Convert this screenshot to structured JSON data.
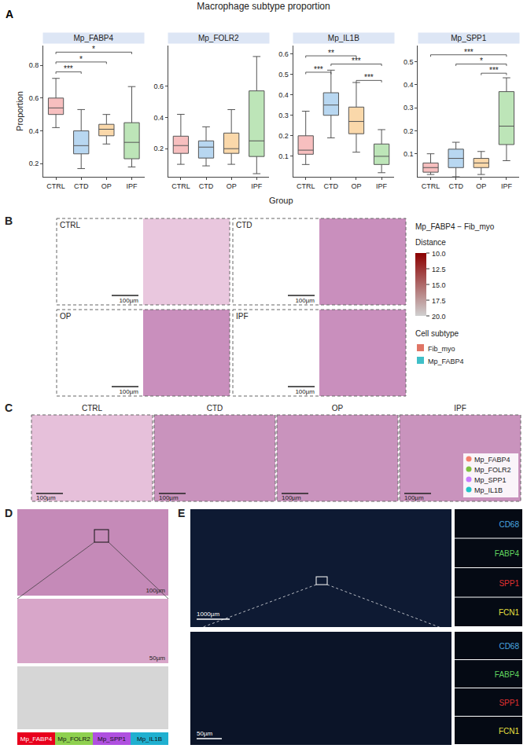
{
  "chart_data": {
    "type": "box",
    "label": "A",
    "title": "Macrophage subtype proportion",
    "x_label": "Group",
    "y_label": "Proportion",
    "categories": [
      "CTRL",
      "CTD",
      "OP",
      "IPF"
    ],
    "colors": [
      "#f08a8a",
      "#7db6e6",
      "#f5b865",
      "#86cf7d"
    ],
    "panels": [
      {
        "title": "Mp_FABP4",
        "ylim": [
          0.12,
          0.92
        ],
        "yticks": [
          0.2,
          0.4,
          0.6,
          0.8
        ],
        "lower": [
          0.42,
          0.17,
          0.32,
          0.18
        ],
        "q1": [
          0.5,
          0.26,
          0.37,
          0.23
        ],
        "median": [
          0.54,
          0.31,
          0.41,
          0.33
        ],
        "q3": [
          0.6,
          0.4,
          0.44,
          0.45
        ],
        "upper": [
          0.72,
          0.53,
          0.5,
          0.67
        ],
        "significance": [
          {
            "from": "CTRL",
            "to": "CTD",
            "label": "***",
            "y": 0.76
          },
          {
            "from": "CTRL",
            "to": "OP",
            "label": "*",
            "y": 0.82
          },
          {
            "from": "CTRL",
            "to": "IPF",
            "label": "*",
            "y": 0.88
          }
        ]
      },
      {
        "title": "Mp_FOLR2",
        "ylim": [
          0.02,
          0.86
        ],
        "yticks": [
          0.2,
          0.4,
          0.6
        ],
        "lower": [
          0.1,
          0.09,
          0.1,
          0.04
        ],
        "q1": [
          0.17,
          0.14,
          0.17,
          0.15
        ],
        "median": [
          0.22,
          0.21,
          0.2,
          0.25
        ],
        "q3": [
          0.28,
          0.25,
          0.3,
          0.57
        ],
        "upper": [
          0.42,
          0.34,
          0.45,
          0.79
        ],
        "significance": []
      },
      {
        "title": "Mp_IL1B",
        "ylim": [
          0.0,
          0.64
        ],
        "yticks": [
          0.1,
          0.2,
          0.3,
          0.4,
          0.5,
          0.6
        ],
        "lower": [
          0.06,
          0.19,
          0.12,
          0.02
        ],
        "q1": [
          0.11,
          0.3,
          0.21,
          0.06
        ],
        "median": [
          0.13,
          0.35,
          0.27,
          0.1
        ],
        "q3": [
          0.2,
          0.41,
          0.34,
          0.16
        ],
        "upper": [
          0.32,
          0.52,
          0.46,
          0.23
        ],
        "significance": [
          {
            "from": "OP",
            "to": "IPF",
            "label": "***",
            "y": 0.47
          },
          {
            "from": "CTRL",
            "to": "CTD",
            "label": "***",
            "y": 0.51
          },
          {
            "from": "CTD",
            "to": "IPF",
            "label": "***",
            "y": 0.55
          },
          {
            "from": "CTRL",
            "to": "OP",
            "label": "**",
            "y": 0.59
          }
        ]
      },
      {
        "title": "Mp_SPP1",
        "ylim": [
          0.0,
          0.57
        ],
        "yticks": [
          0.1,
          0.2,
          0.3,
          0.4,
          0.5
        ],
        "lower": [
          0.01,
          0.0,
          0.01,
          0.07
        ],
        "q1": [
          0.02,
          0.04,
          0.04,
          0.14
        ],
        "median": [
          0.04,
          0.08,
          0.06,
          0.22
        ],
        "q3": [
          0.06,
          0.12,
          0.08,
          0.37
        ],
        "upper": [
          0.1,
          0.15,
          0.11,
          0.43
        ],
        "significance": [
          {
            "from": "OP",
            "to": "IPF",
            "label": "***",
            "y": 0.45
          },
          {
            "from": "CTD",
            "to": "IPF",
            "label": "*",
            "y": 0.49
          },
          {
            "from": "CTRL",
            "to": "IPF",
            "label": "***",
            "y": 0.53
          }
        ]
      }
    ]
  },
  "panel_b": {
    "label": "B",
    "maps": [
      "CTRL",
      "CTD",
      "OP",
      "IPF"
    ],
    "scale_bar": "100µm",
    "colorbar": {
      "title": "Mp_FABP4 − Fib_myo",
      "subtitle": "Distance",
      "range": [
        10,
        20
      ],
      "colors": [
        "#8b0000",
        "#d0d0d0"
      ],
      "ticks": [
        {
          "value": 10,
          "label": "10.0"
        },
        {
          "value": 12.5,
          "label": "12.5"
        },
        {
          "value": 15,
          "label": "15.0"
        },
        {
          "value": 17.5,
          "label": "17.5"
        },
        {
          "value": 20,
          "label": "20.0"
        }
      ]
    },
    "legend": {
      "title": "Cell subtype",
      "items": [
        {
          "name": "Fib_myo",
          "color": "#e07565"
        },
        {
          "name": "Mp_FABP4",
          "color": "#3fbfc8"
        }
      ]
    }
  },
  "panel_c": {
    "label": "C",
    "maps": [
      "CTRL",
      "CTD",
      "OP",
      "IPF"
    ],
    "scale_bar": "100µm",
    "legend": [
      {
        "name": "Mp_FABP4",
        "color": "#f4806c"
      },
      {
        "name": "Mp_FOLR2",
        "color": "#7fbf3f"
      },
      {
        "name": "Mp_SPP1",
        "color": "#c77cff"
      },
      {
        "name": "Mp_IL1B",
        "color": "#22c3c8"
      }
    ]
  },
  "panel_d": {
    "label": "D",
    "scale_bars": [
      "100µm",
      "50µm"
    ],
    "legend": [
      {
        "name": "Mp_FABP4",
        "color": "#e8001c"
      },
      {
        "name": "Mp_FOLR2",
        "color": "#8fd14f"
      },
      {
        "name": "Mp_SPP1",
        "color": "#b050e0"
      },
      {
        "name": "Mp_IL1B",
        "color": "#20b0d0"
      }
    ]
  },
  "panel_e": {
    "label": "E",
    "scale_bars": [
      "1000µm",
      "50µm"
    ],
    "markers": [
      {
        "name": "CD68",
        "color": "#4aa8e0"
      },
      {
        "name": "FABP4",
        "color": "#5fd35f"
      },
      {
        "name": "SPP1",
        "color": "#e03030"
      },
      {
        "name": "FCN1",
        "color": "#e8e040"
      }
    ]
  }
}
